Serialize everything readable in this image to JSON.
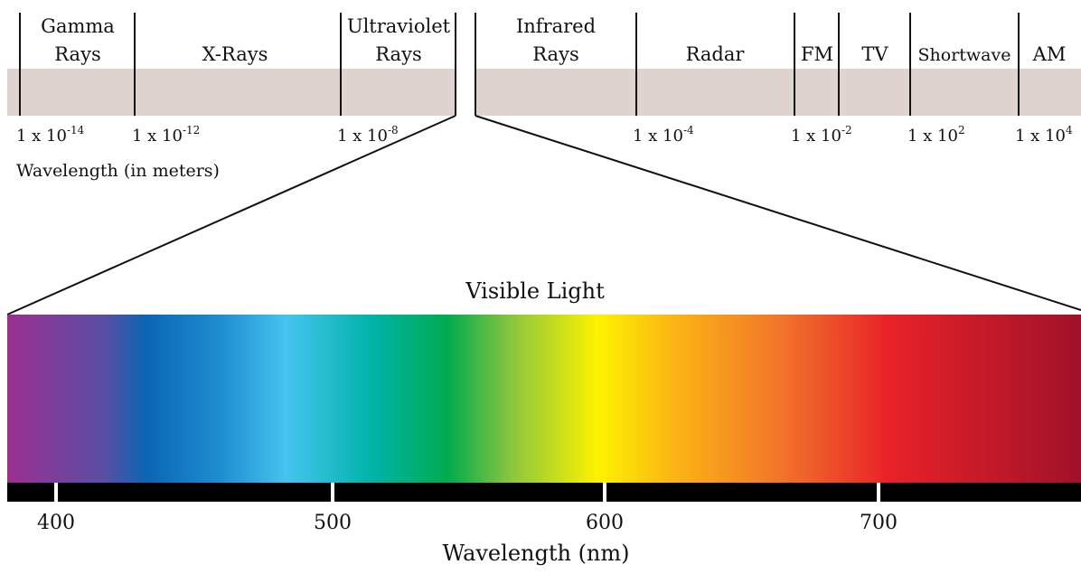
{
  "diagram": {
    "bands": [
      {
        "line1": "Gamma",
        "line2": "Rays"
      },
      {
        "line1": "",
        "line2": "X-Rays"
      },
      {
        "line1": "Ultraviolet",
        "line2": "Rays"
      },
      {
        "line1": "Infrared",
        "line2": "Rays"
      },
      {
        "line1": "",
        "line2": "Radar"
      },
      {
        "line1": "",
        "line2": "FM"
      },
      {
        "line1": "",
        "line2": "TV"
      },
      {
        "line1": "",
        "line2": "Shortwave"
      },
      {
        "line1": "",
        "line2": "AM"
      }
    ],
    "wavelength_ticks": [
      {
        "base": "1 x 10",
        "exp": "-14"
      },
      {
        "base": "1 x 10",
        "exp": "-12"
      },
      {
        "base": "1 x 10",
        "exp": "-8"
      },
      {
        "base": "1 x 10",
        "exp": "-4"
      },
      {
        "base": "1 x 10",
        "exp": "-2"
      },
      {
        "base": "1 x 10",
        "exp": "2"
      },
      {
        "base": "1 x 10",
        "exp": "4"
      }
    ],
    "wavelength_axis_label": "Wavelength (in meters)",
    "visible_title": "Visible Light",
    "nm_ticks": [
      "400",
      "500",
      "600",
      "700"
    ],
    "nm_axis_label": "Wavelength (nm)",
    "colors": {
      "band_fill": "#ded3ce",
      "spectrum": [
        "#9b2f91",
        "#5a4ea3",
        "#0a66b4",
        "#45c4f0",
        "#00b3a8",
        "#00ab4e",
        "#8cc63e",
        "#fef200",
        "#fbb514",
        "#f2752a",
        "#e92228",
        "#a0112a"
      ]
    }
  }
}
